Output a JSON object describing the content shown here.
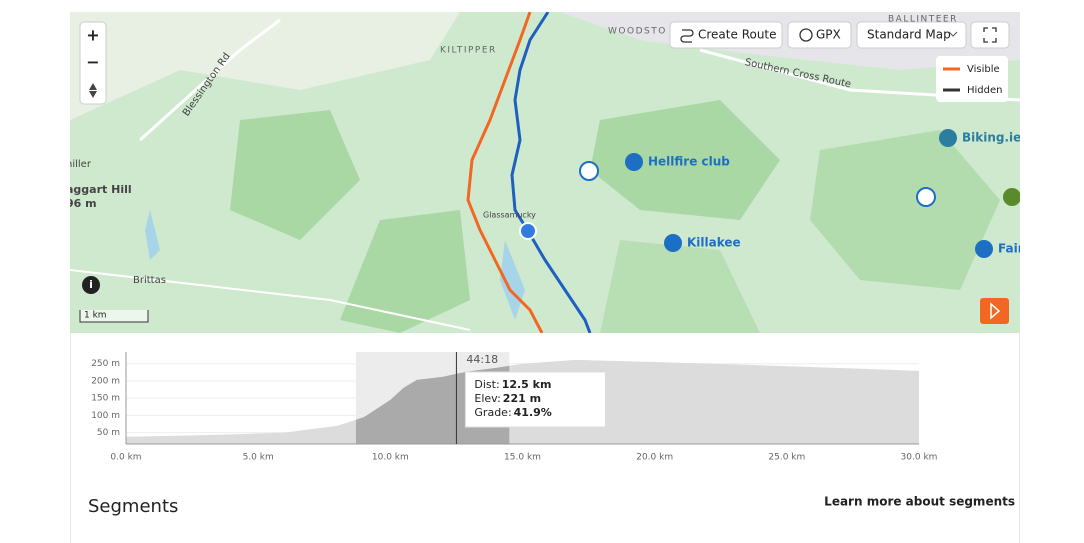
{
  "toolbar": {
    "create_route": "Create Route",
    "gpx": "GPX",
    "map_style": "Standard Map"
  },
  "zoom": {
    "in": "+",
    "out": "−"
  },
  "legend": {
    "visible": "Visible",
    "hidden": "Hidden"
  },
  "scale": "1 km",
  "places": [
    "KILTIPPER",
    "WOODSTO",
    "BALLINTEER",
    "Southern Cross Route",
    "Blessington Rd",
    "niller",
    "aggart Hill",
    "96 m",
    "Glassamucky",
    "Hellfire club",
    "Killakee",
    "Biking.ie",
    "Fair",
    "Brittas"
  ],
  "elevation": {
    "x": [
      0,
      2,
      4,
      6,
      8,
      9,
      10,
      10.5,
      11,
      12,
      12.5,
      13,
      14,
      15,
      17,
      20,
      23,
      26,
      28,
      30
    ],
    "values": [
      38,
      41,
      45,
      50,
      70,
      95,
      145,
      180,
      203,
      212,
      221,
      228,
      238,
      250,
      261,
      255,
      248,
      240,
      235,
      229
    ],
    "xlim": [
      0,
      30
    ],
    "ylim": [
      17,
      284
    ],
    "yticks": [
      {
        "value": 50,
        "label": "50 m"
      },
      {
        "value": 100,
        "label": "100 m"
      },
      {
        "value": 150,
        "label": "150 m"
      },
      {
        "value": 200,
        "label": "200 m"
      },
      {
        "value": 250,
        "label": "250 m"
      }
    ],
    "xticks": [
      {
        "value": 0,
        "label": "0.0 km"
      },
      {
        "value": 5,
        "label": "5.0 km"
      },
      {
        "value": 10,
        "label": "10.0 km"
      },
      {
        "value": 15,
        "label": "15.0 km"
      },
      {
        "value": 20,
        "label": "20.0 km"
      },
      {
        "value": 25,
        "label": "25.0 km"
      },
      {
        "value": 30,
        "label": "30.0 km"
      }
    ],
    "highlight": [
      8.7,
      14.5
    ],
    "cursor": 12.5,
    "cursor_time": "44:18",
    "tooltip": {
      "dist_label": "Dist:",
      "dist": "12.5 km",
      "elev_label": "Elev:",
      "elev": "221 m",
      "grade_label": "Grade:",
      "grade": "41.9%"
    }
  },
  "segments": {
    "title": "Segments",
    "link": "Learn more about segments"
  }
}
